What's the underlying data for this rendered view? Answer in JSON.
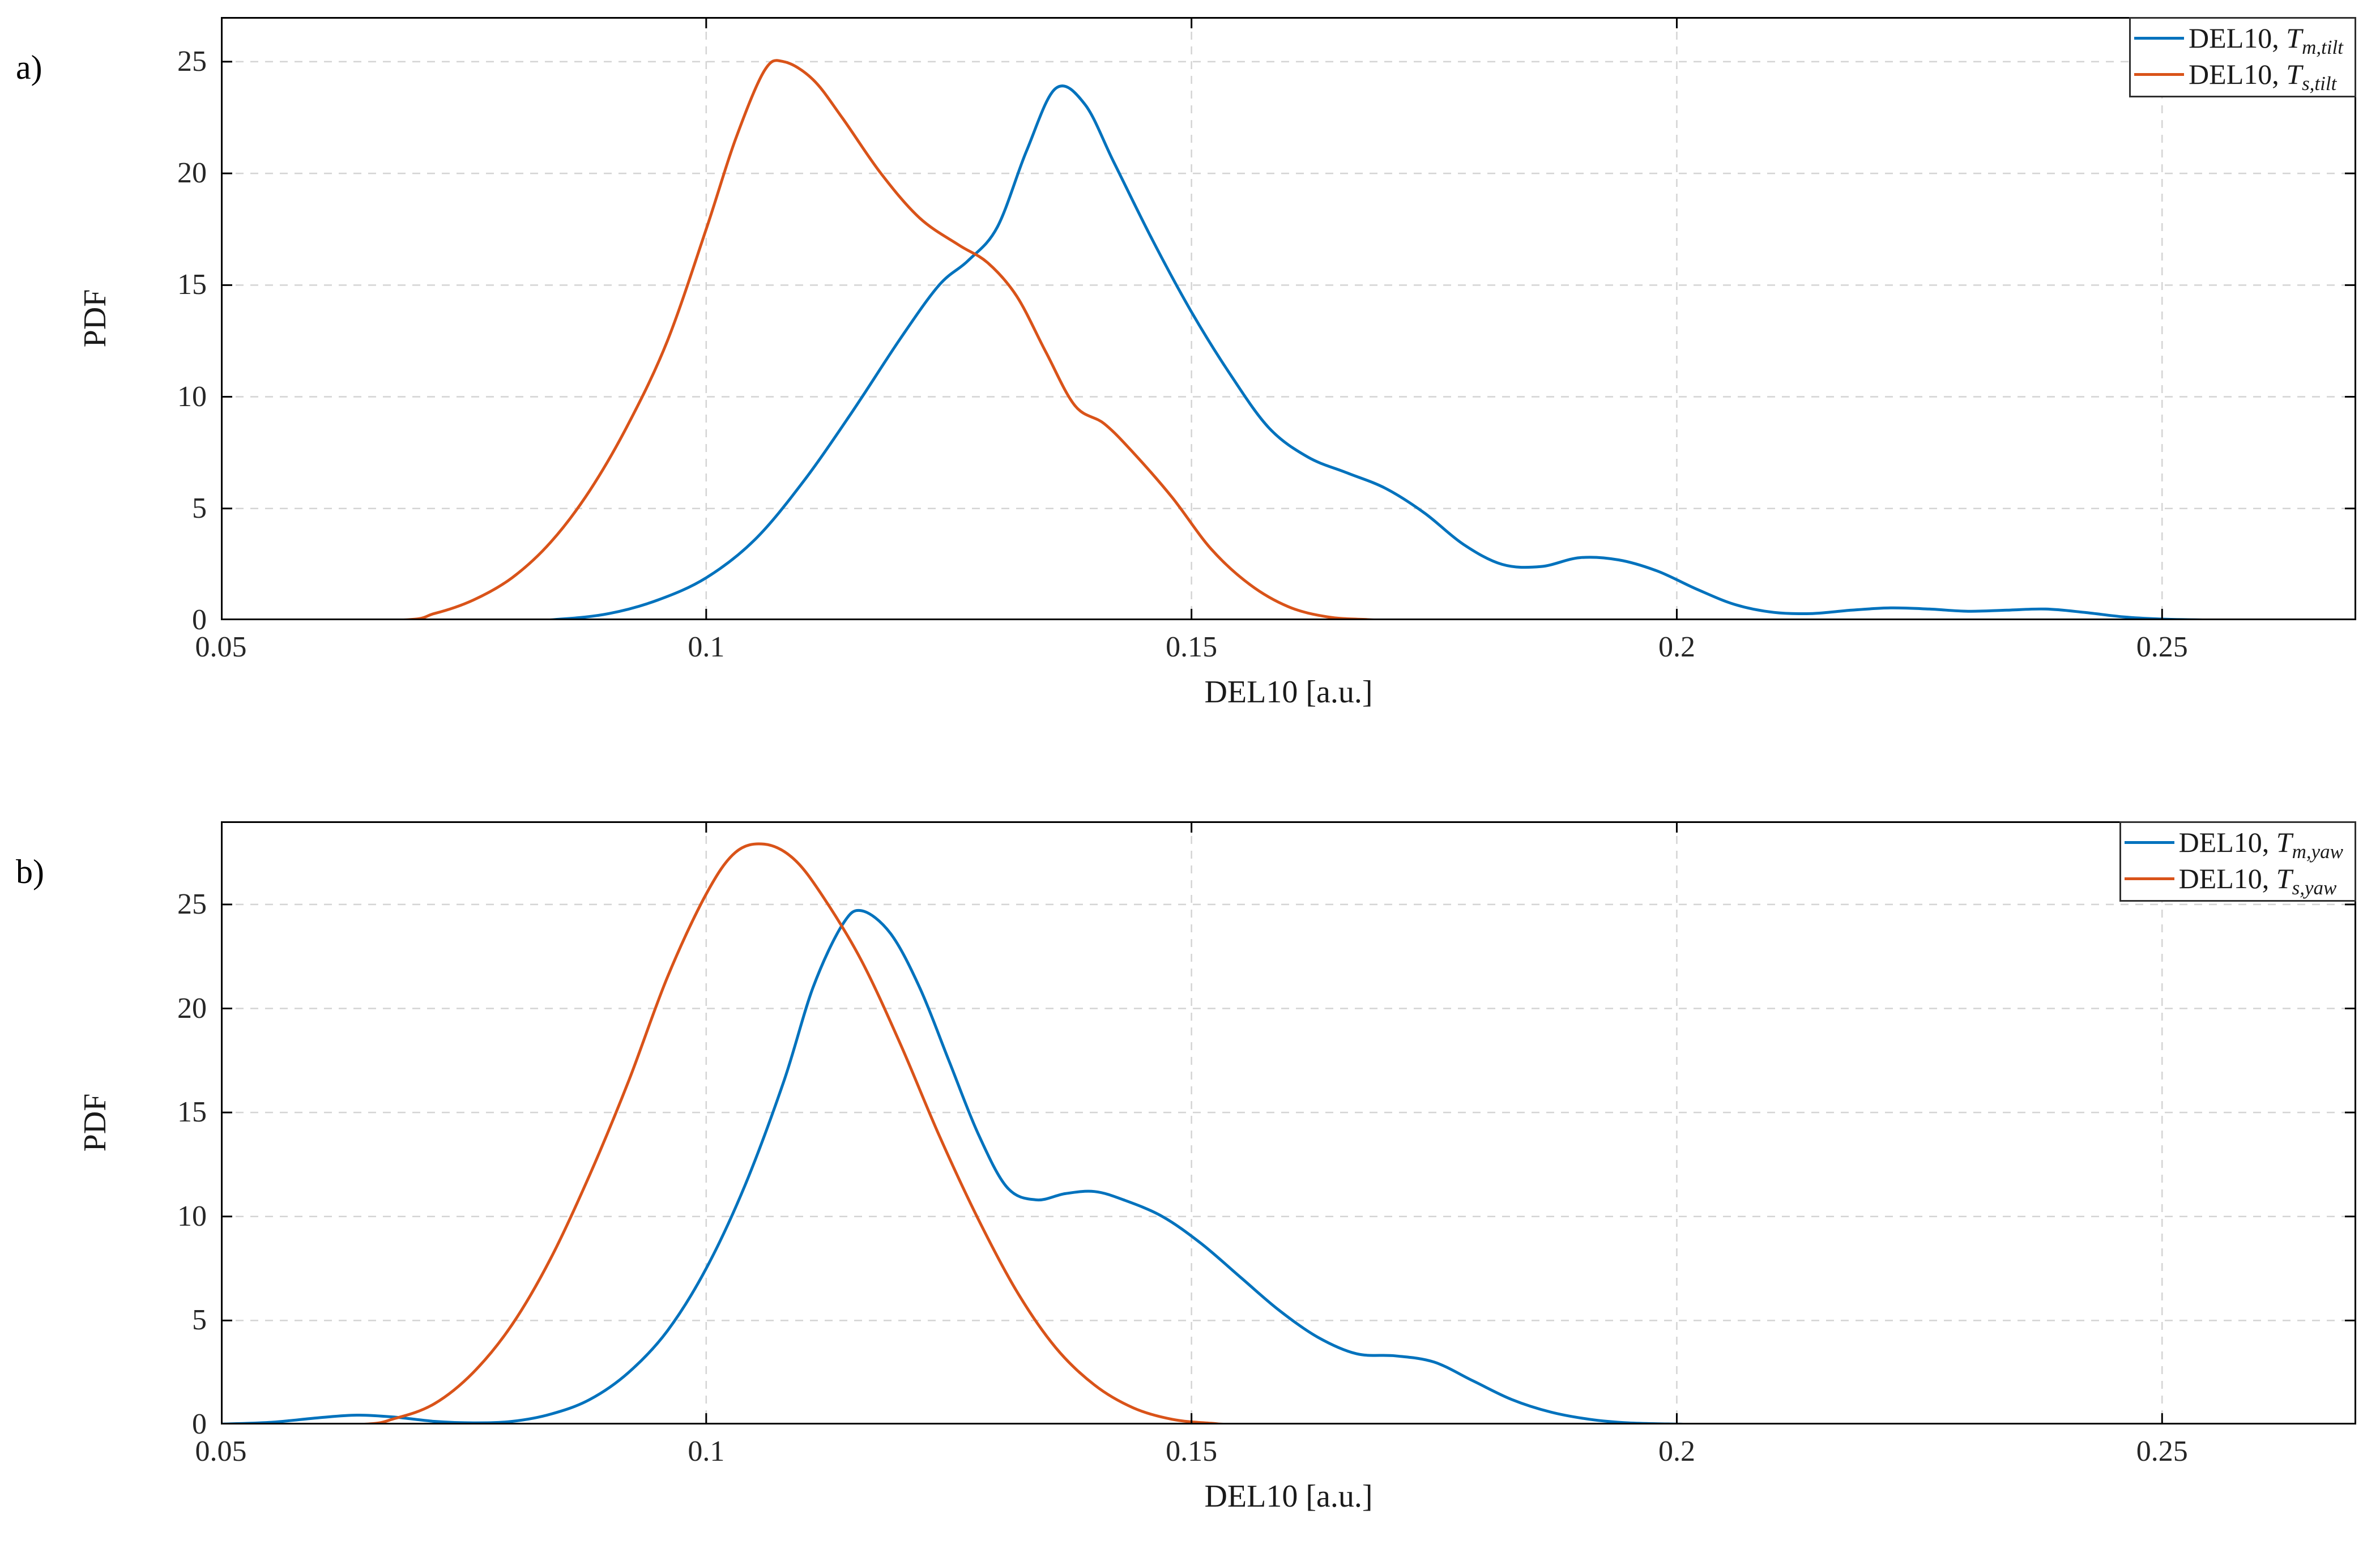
{
  "figure": {
    "background": "#ffffff"
  },
  "panels": [
    {
      "letter": "a)"
    },
    {
      "letter": "b)"
    }
  ],
  "colors": {
    "blue": "#0072BD",
    "orange": "#D95319",
    "grid": "#d4d4d4",
    "axis": "#000000"
  },
  "chart_data": [
    {
      "type": "line",
      "title": "",
      "xlabel": "DEL10 [a.u.]",
      "ylabel": "PDF",
      "xlim": [
        0.05,
        0.27
      ],
      "ylim": [
        0,
        27
      ],
      "xticks": [
        0.05,
        0.1,
        0.15,
        0.2,
        0.25
      ],
      "xtick_labels": [
        "0.05",
        "0.1",
        "0.15",
        "0.2",
        "0.25"
      ],
      "yticks": [
        0,
        5,
        10,
        15,
        20,
        25
      ],
      "ytick_labels": [
        "0",
        "5",
        "10",
        "15",
        "20",
        "25"
      ],
      "grid": true,
      "legend_position": "top-right",
      "series": [
        {
          "name": "DEL10, T_{m,tilt}",
          "label_prefix": "DEL10, ",
          "label_var": "T",
          "label_sub": "m,tilt",
          "color": "#0072BD",
          "points": [
            [
              0.05,
              0
            ],
            [
              0.08,
              0
            ],
            [
              0.085,
              0.05
            ],
            [
              0.09,
              0.3
            ],
            [
              0.095,
              0.9
            ],
            [
              0.1,
              1.9
            ],
            [
              0.105,
              3.6
            ],
            [
              0.11,
              6.2
            ],
            [
              0.115,
              9.3
            ],
            [
              0.12,
              12.6
            ],
            [
              0.124,
              15.0
            ],
            [
              0.127,
              16.1
            ],
            [
              0.13,
              17.6
            ],
            [
              0.133,
              21.0
            ],
            [
              0.136,
              23.8
            ],
            [
              0.139,
              23.1
            ],
            [
              0.142,
              20.5
            ],
            [
              0.146,
              17.0
            ],
            [
              0.15,
              13.8
            ],
            [
              0.154,
              11.0
            ],
            [
              0.158,
              8.6
            ],
            [
              0.162,
              7.3
            ],
            [
              0.166,
              6.6
            ],
            [
              0.17,
              5.9
            ],
            [
              0.174,
              4.8
            ],
            [
              0.178,
              3.4
            ],
            [
              0.182,
              2.5
            ],
            [
              0.186,
              2.4
            ],
            [
              0.19,
              2.8
            ],
            [
              0.194,
              2.7
            ],
            [
              0.198,
              2.2
            ],
            [
              0.202,
              1.4
            ],
            [
              0.206,
              0.7
            ],
            [
              0.21,
              0.35
            ],
            [
              0.214,
              0.3
            ],
            [
              0.218,
              0.45
            ],
            [
              0.222,
              0.55
            ],
            [
              0.226,
              0.5
            ],
            [
              0.23,
              0.4
            ],
            [
              0.234,
              0.45
            ],
            [
              0.238,
              0.5
            ],
            [
              0.242,
              0.35
            ],
            [
              0.246,
              0.15
            ],
            [
              0.25,
              0.05
            ],
            [
              0.255,
              0.01
            ],
            [
              0.26,
              0
            ],
            [
              0.27,
              0
            ]
          ]
        },
        {
          "name": "DEL10, T_{s,tilt}",
          "label_prefix": "DEL10, ",
          "label_var": "T",
          "label_sub": "s,tilt",
          "color": "#D95319",
          "points": [
            [
              0.05,
              0
            ],
            [
              0.068,
              0
            ],
            [
              0.072,
              0.3
            ],
            [
              0.076,
              0.9
            ],
            [
              0.08,
              1.9
            ],
            [
              0.084,
              3.5
            ],
            [
              0.088,
              5.8
            ],
            [
              0.092,
              8.8
            ],
            [
              0.096,
              12.5
            ],
            [
              0.1,
              17.5
            ],
            [
              0.103,
              21.5
            ],
            [
              0.106,
              24.6
            ],
            [
              0.108,
              25.0
            ],
            [
              0.111,
              24.2
            ],
            [
              0.114,
              22.5
            ],
            [
              0.118,
              20.0
            ],
            [
              0.122,
              18.0
            ],
            [
              0.126,
              16.8
            ],
            [
              0.129,
              16.0
            ],
            [
              0.132,
              14.5
            ],
            [
              0.135,
              12.0
            ],
            [
              0.138,
              9.6
            ],
            [
              0.141,
              8.8
            ],
            [
              0.144,
              7.5
            ],
            [
              0.148,
              5.5
            ],
            [
              0.152,
              3.2
            ],
            [
              0.156,
              1.6
            ],
            [
              0.16,
              0.6
            ],
            [
              0.164,
              0.15
            ],
            [
              0.168,
              0.03
            ],
            [
              0.172,
              0
            ],
            [
              0.19,
              0
            ],
            [
              0.21,
              0
            ],
            [
              0.23,
              0
            ],
            [
              0.25,
              0
            ],
            [
              0.27,
              0
            ]
          ]
        }
      ]
    },
    {
      "type": "line",
      "title": "",
      "xlabel": "DEL10 [a.u.]",
      "ylabel": "PDF",
      "xlim": [
        0.05,
        0.27
      ],
      "ylim": [
        0,
        29
      ],
      "xticks": [
        0.05,
        0.1,
        0.15,
        0.2,
        0.25
      ],
      "xtick_labels": [
        "0.05",
        "0.1",
        "0.15",
        "0.2",
        "0.25"
      ],
      "yticks": [
        0,
        5,
        10,
        15,
        20,
        25
      ],
      "ytick_labels": [
        "0",
        "5",
        "10",
        "15",
        "20",
        "25"
      ],
      "grid": true,
      "legend_position": "top-right",
      "series": [
        {
          "name": "DEL10, T_{m,yaw}",
          "label_prefix": "DEL10, ",
          "label_var": "T",
          "label_sub": "m,yaw",
          "color": "#0072BD",
          "points": [
            [
              0.05,
              0.02
            ],
            [
              0.055,
              0.1
            ],
            [
              0.06,
              0.32
            ],
            [
              0.064,
              0.45
            ],
            [
              0.068,
              0.35
            ],
            [
              0.072,
              0.15
            ],
            [
              0.076,
              0.08
            ],
            [
              0.08,
              0.15
            ],
            [
              0.084,
              0.5
            ],
            [
              0.088,
              1.2
            ],
            [
              0.092,
              2.5
            ],
            [
              0.096,
              4.5
            ],
            [
              0.1,
              7.5
            ],
            [
              0.104,
              11.5
            ],
            [
              0.108,
              16.5
            ],
            [
              0.111,
              21.0
            ],
            [
              0.114,
              24.0
            ],
            [
              0.116,
              24.7
            ],
            [
              0.119,
              23.6
            ],
            [
              0.122,
              21.0
            ],
            [
              0.125,
              17.5
            ],
            [
              0.128,
              14.0
            ],
            [
              0.131,
              11.4
            ],
            [
              0.134,
              10.8
            ],
            [
              0.137,
              11.1
            ],
            [
              0.14,
              11.2
            ],
            [
              0.143,
              10.8
            ],
            [
              0.147,
              10.0
            ],
            [
              0.151,
              8.7
            ],
            [
              0.155,
              7.1
            ],
            [
              0.159,
              5.5
            ],
            [
              0.163,
              4.2
            ],
            [
              0.167,
              3.4
            ],
            [
              0.171,
              3.3
            ],
            [
              0.175,
              3.0
            ],
            [
              0.179,
              2.1
            ],
            [
              0.183,
              1.2
            ],
            [
              0.187,
              0.6
            ],
            [
              0.191,
              0.25
            ],
            [
              0.195,
              0.08
            ],
            [
              0.2,
              0.02
            ],
            [
              0.205,
              0
            ],
            [
              0.23,
              0
            ],
            [
              0.25,
              0
            ],
            [
              0.27,
              0
            ]
          ]
        },
        {
          "name": "DEL10, T_{s,yaw}",
          "label_prefix": "DEL10, ",
          "label_var": "T",
          "label_sub": "s,yaw",
          "color": "#D95319",
          "points": [
            [
              0.05,
              0
            ],
            [
              0.064,
              0
            ],
            [
              0.068,
              0.3
            ],
            [
              0.072,
              1.0
            ],
            [
              0.076,
              2.5
            ],
            [
              0.08,
              4.8
            ],
            [
              0.084,
              8.0
            ],
            [
              0.088,
              12.0
            ],
            [
              0.092,
              16.5
            ],
            [
              0.096,
              21.5
            ],
            [
              0.1,
              25.5
            ],
            [
              0.103,
              27.5
            ],
            [
              0.106,
              27.9
            ],
            [
              0.109,
              27.2
            ],
            [
              0.112,
              25.4
            ],
            [
              0.116,
              22.3
            ],
            [
              0.12,
              18.3
            ],
            [
              0.124,
              13.9
            ],
            [
              0.128,
              9.9
            ],
            [
              0.132,
              6.4
            ],
            [
              0.136,
              3.7
            ],
            [
              0.14,
              1.9
            ],
            [
              0.144,
              0.8
            ],
            [
              0.148,
              0.25
            ],
            [
              0.152,
              0.06
            ],
            [
              0.156,
              0
            ],
            [
              0.18,
              0
            ],
            [
              0.21,
              0
            ],
            [
              0.24,
              0
            ],
            [
              0.27,
              0
            ]
          ]
        }
      ]
    }
  ]
}
